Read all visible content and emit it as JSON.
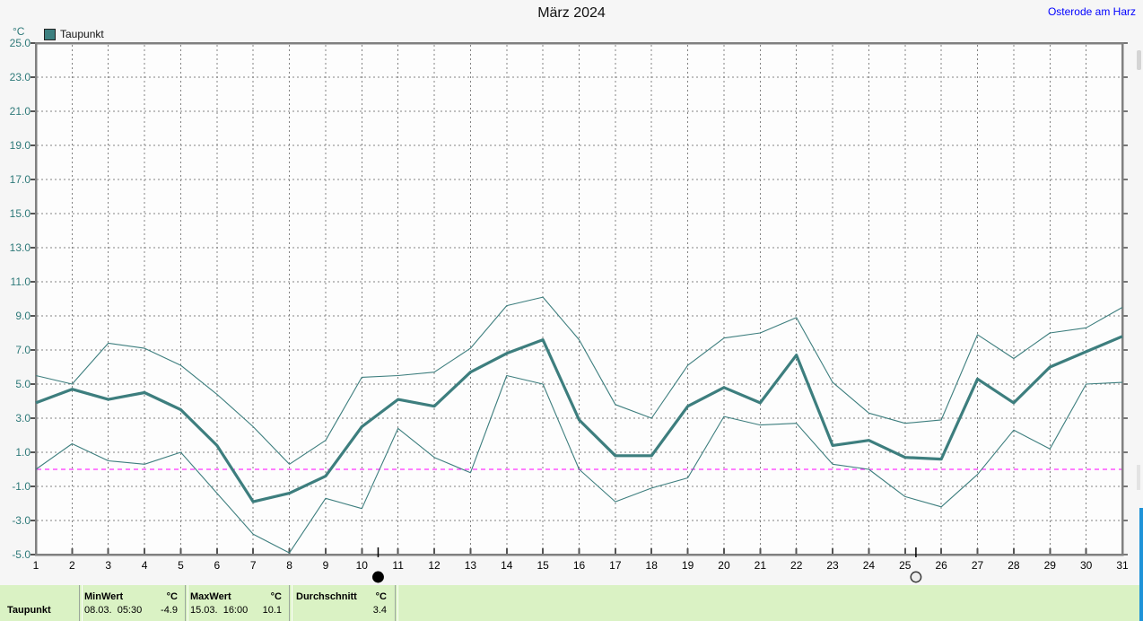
{
  "header": {
    "title": "März 2024",
    "station": "Osterode am Harz"
  },
  "legend": {
    "unit": "°C",
    "series": "Taupunkt"
  },
  "chart_data": {
    "type": "line",
    "title": "März 2024",
    "ylabel": "°C",
    "ylim": [
      -5,
      25
    ],
    "ytick_step": 2,
    "x": [
      1,
      2,
      3,
      4,
      5,
      6,
      7,
      8,
      9,
      10,
      11,
      12,
      13,
      14,
      15,
      16,
      17,
      18,
      19,
      20,
      21,
      22,
      23,
      24,
      25,
      26,
      27,
      28,
      29,
      30,
      31
    ],
    "series": [
      {
        "name": "Taupunkt Maximum",
        "style": "thin",
        "values": [
          5.5,
          5.0,
          7.4,
          7.1,
          6.1,
          4.4,
          2.5,
          0.3,
          1.7,
          5.4,
          5.5,
          5.7,
          7.1,
          9.6,
          10.1,
          7.6,
          3.8,
          3.0,
          6.1,
          7.7,
          8.0,
          8.9,
          5.1,
          3.3,
          2.7,
          2.9,
          7.9,
          6.5,
          8.0,
          8.3,
          9.5
        ]
      },
      {
        "name": "Taupunkt",
        "style": "thick",
        "values": [
          3.9,
          4.7,
          4.1,
          4.5,
          3.5,
          1.4,
          -1.9,
          -1.4,
          -0.4,
          2.5,
          4.1,
          3.7,
          5.7,
          6.8,
          7.6,
          2.9,
          0.8,
          0.8,
          3.7,
          4.8,
          3.9,
          6.7,
          1.4,
          1.7,
          0.7,
          0.6,
          5.3,
          3.9,
          6.0,
          6.9,
          7.8
        ]
      },
      {
        "name": "Taupunkt Minimum",
        "style": "thin",
        "values": [
          0.0,
          1.5,
          0.5,
          0.3,
          1.0,
          -1.4,
          -3.8,
          -4.9,
          -1.7,
          -2.3,
          2.4,
          0.7,
          -0.2,
          5.5,
          5.0,
          0.0,
          -1.9,
          -1.1,
          -0.5,
          3.1,
          2.6,
          2.7,
          0.3,
          0.0,
          -1.6,
          -2.2,
          -0.3,
          2.3,
          1.2,
          5.0,
          5.1
        ]
      }
    ],
    "grid": "dotted",
    "zero_line": {
      "value": 0,
      "color": "#ff00ff",
      "style": "dashed"
    },
    "line_color": "#3d7e7e",
    "moon_markers": [
      {
        "day": 10.45,
        "phase": "new"
      },
      {
        "day": 25.3,
        "phase": "full"
      }
    ]
  },
  "footer": {
    "series_label": "Taupunkt",
    "min": {
      "label": "MinWert",
      "unit": "°C",
      "datetime": "08.03.  05:30",
      "value": "-4.9"
    },
    "max": {
      "label": "MaxWert",
      "unit": "°C",
      "datetime": "15.03.  16:00",
      "value": "10.1"
    },
    "avg": {
      "label": "Durchschnitt",
      "unit": "°C",
      "value": "3.4"
    }
  },
  "colors": {
    "line": "#3d7e7e",
    "axis_label": "#2e7979",
    "grid": "#828282",
    "border": "#808080",
    "zero_line": "#ff00ff",
    "footer_bg": "#daf2c4",
    "link": "#0000ff"
  }
}
